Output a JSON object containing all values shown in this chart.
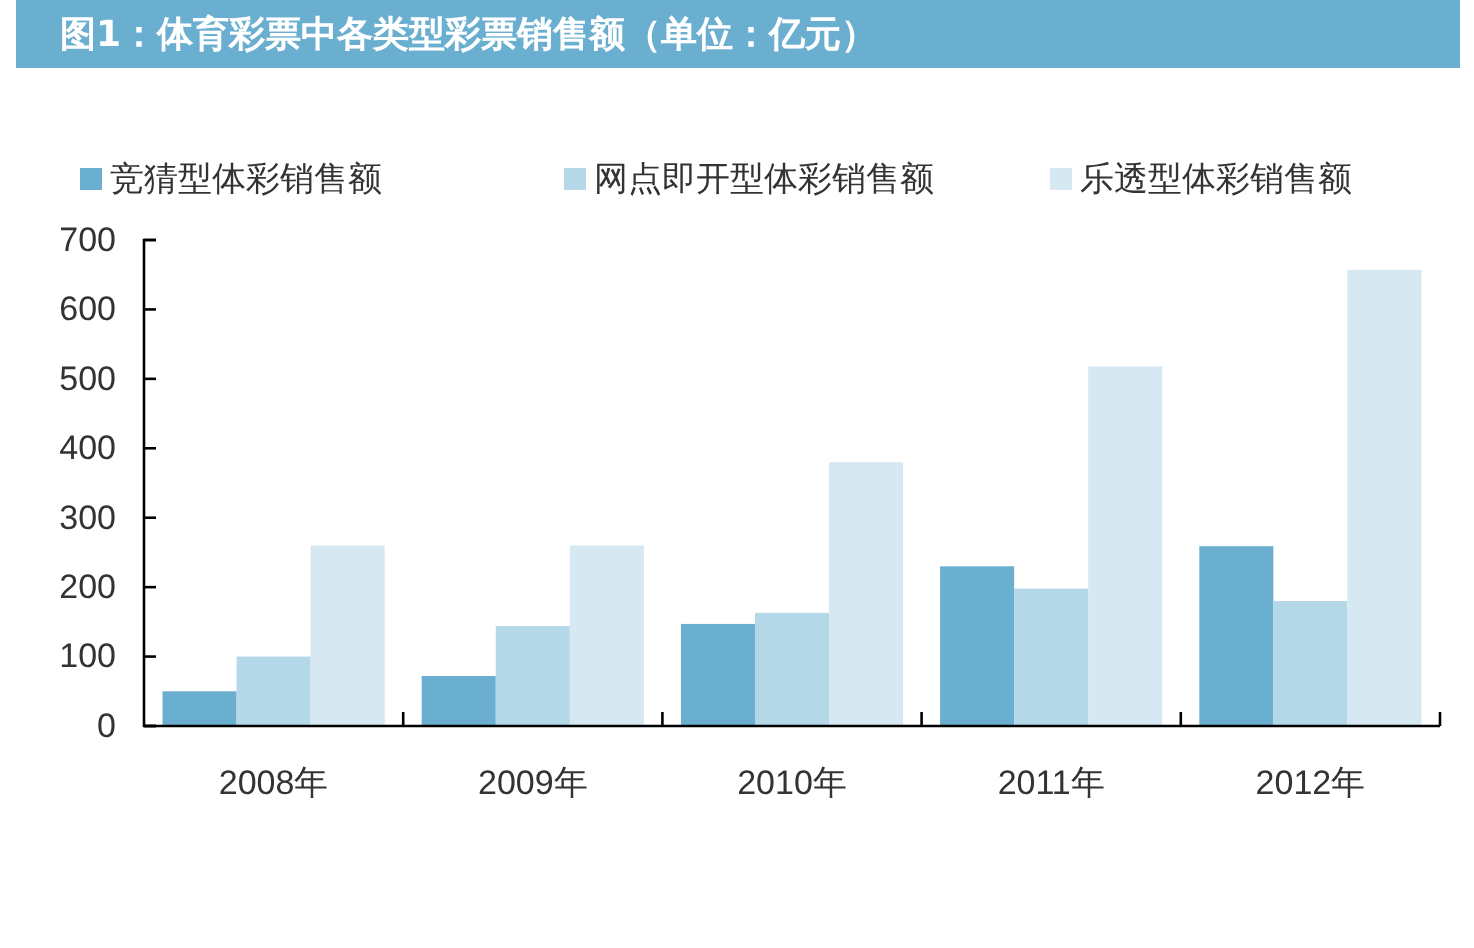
{
  "chart_data": {
    "type": "bar",
    "title": "图1：体育彩票中各类型彩票销售额（单位：亿元）",
    "categories": [
      "2008年",
      "2009年",
      "2010年",
      "2011年",
      "2012年"
    ],
    "series": [
      {
        "name": "竞猜型体彩销售额",
        "color": "#6aaed0",
        "values": [
          50,
          72,
          147,
          230,
          259
        ]
      },
      {
        "name": "网点即开型体彩销售额",
        "color": "#b5d8e8",
        "values": [
          100,
          144,
          163,
          198,
          180
        ]
      },
      {
        "name": "乐透型体彩销售额",
        "color": "#d6e8f2",
        "values": [
          260,
          260,
          380,
          518,
          657
        ]
      }
    ],
    "ylim": [
      0,
      700
    ],
    "yticks": [
      0,
      100,
      200,
      300,
      400,
      500,
      600,
      700
    ],
    "legend": "top",
    "grid": false
  }
}
